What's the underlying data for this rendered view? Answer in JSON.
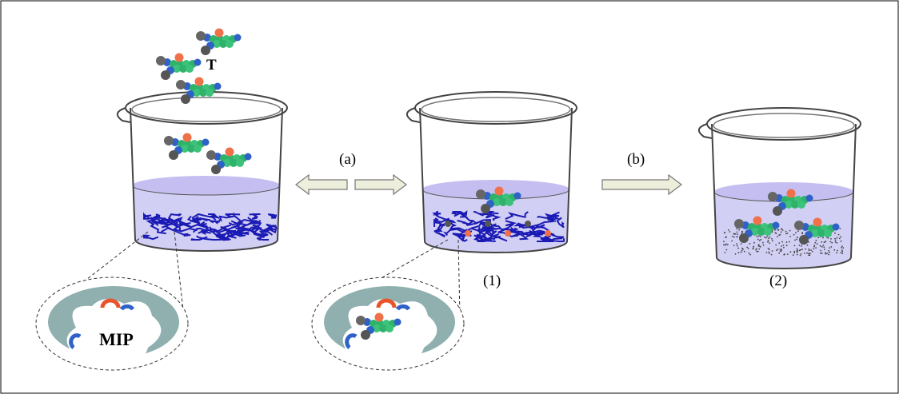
{
  "labels": {
    "template": "T",
    "step_a": "(a)",
    "step_b": "(b)",
    "beaker_1": "(1)",
    "beaker_2": "(2)",
    "polymer": "MIP"
  }
}
